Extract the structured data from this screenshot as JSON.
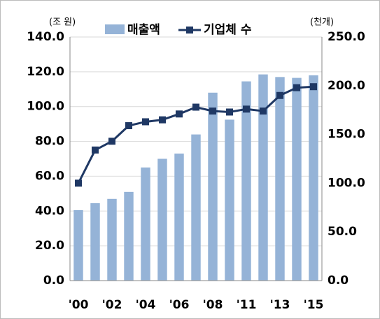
{
  "chart_data": {
    "type": "bar-line",
    "y_unit": "(조 원)",
    "y2_unit": "(천개)",
    "categories": [
      "'00",
      null,
      "'02",
      null,
      "'04",
      null,
      "'06",
      null,
      "'08",
      null,
      "'11",
      null,
      "'13",
      null,
      "'15"
    ],
    "series": [
      {
        "name": "매출액",
        "type": "bar",
        "color": "#95b3d7",
        "values": [
          40.5,
          44.5,
          47,
          51,
          65,
          70,
          73,
          84,
          108,
          92.5,
          114.5,
          118.5,
          117,
          116.5,
          118
        ]
      },
      {
        "name": "기업체 수",
        "type": "line",
        "axis": "y2",
        "color": "#1f3864",
        "values": [
          100,
          134,
          143,
          159,
          163,
          165,
          171,
          178,
          174,
          173,
          176,
          174,
          190,
          198,
          199
        ]
      }
    ],
    "ylim": [
      0,
      140
    ],
    "yticks": [
      {
        "value": 0,
        "label": "0.0"
      },
      {
        "value": 20,
        "label": "20.0"
      },
      {
        "value": 40,
        "label": "40.0"
      },
      {
        "value": 60,
        "label": "60.0"
      },
      {
        "value": 80,
        "label": "80.0"
      },
      {
        "value": 100,
        "label": "100.0"
      },
      {
        "value": 120,
        "label": "120.0"
      },
      {
        "value": 140,
        "label": "140.0"
      }
    ],
    "y2lim": [
      0,
      250
    ],
    "y2ticks": [
      {
        "value": 0,
        "label": "0.0"
      },
      {
        "value": 50,
        "label": "50.0"
      },
      {
        "value": 100,
        "label": "100.0"
      },
      {
        "value": 150,
        "label": "150.0"
      },
      {
        "value": 200,
        "label": "200.0"
      },
      {
        "value": 250,
        "label": "250.0"
      }
    ],
    "grid": true
  }
}
